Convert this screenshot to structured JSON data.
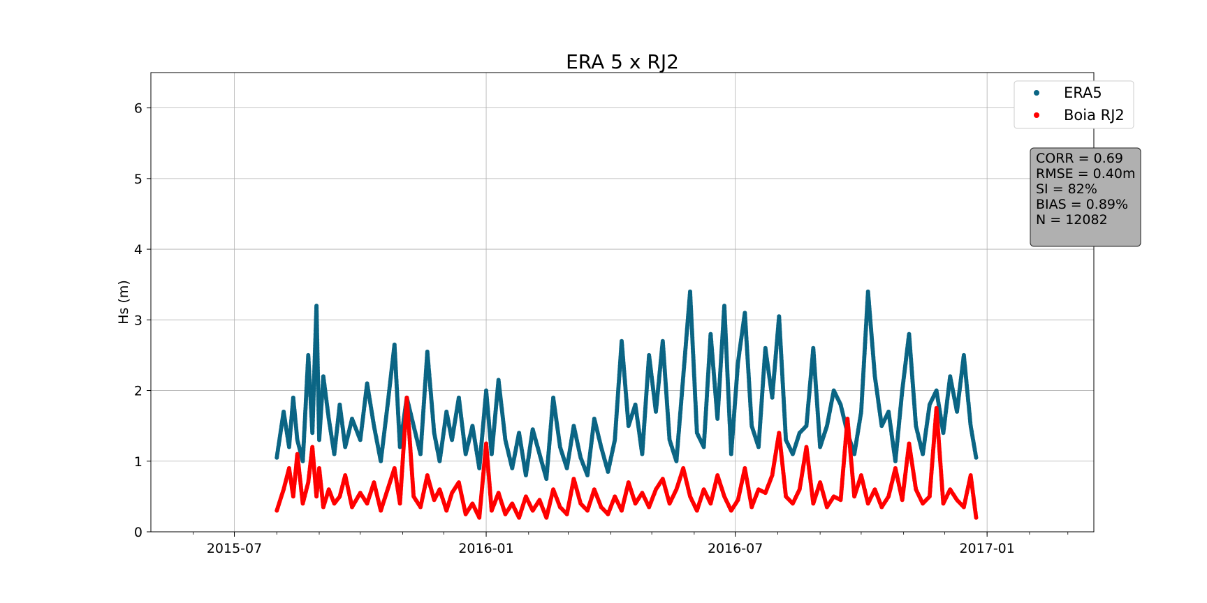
{
  "chart_data": {
    "type": "scatter",
    "title": "ERA 5 x RJ2",
    "xlabel": "",
    "ylabel": "Hs (m)",
    "x_axis": {
      "kind": "date",
      "min": "2015-05-01",
      "max": "2017-03-20",
      "ticks": [
        "2015-07-01",
        "2016-01-01",
        "2016-07-01",
        "2017-01-01"
      ],
      "tick_labels": [
        "2015-07",
        "2016-01",
        "2016-07",
        "2017-01"
      ]
    },
    "y_axis": {
      "min": 0,
      "max": 6.5,
      "ticks": [
        0,
        1,
        2,
        3,
        4,
        5,
        6
      ],
      "tick_labels": [
        "0",
        "1",
        "2",
        "3",
        "4",
        "5",
        "6"
      ]
    },
    "grid": true,
    "legend_position": "top-right",
    "series": [
      {
        "name": "ERA5",
        "color": "#0b6584",
        "x": [
          "2015-08-01",
          "2015-08-06",
          "2015-08-10",
          "2015-08-13",
          "2015-08-16",
          "2015-08-20",
          "2015-08-24",
          "2015-08-27",
          "2015-08-30",
          "2015-09-01",
          "2015-09-04",
          "2015-09-08",
          "2015-09-12",
          "2015-09-16",
          "2015-09-20",
          "2015-09-25",
          "2015-10-01",
          "2015-10-06",
          "2015-10-11",
          "2015-10-16",
          "2015-10-21",
          "2015-10-26",
          "2015-10-30",
          "2015-11-04",
          "2015-11-09",
          "2015-11-14",
          "2015-11-19",
          "2015-11-24",
          "2015-11-28",
          "2015-12-03",
          "2015-12-07",
          "2015-12-12",
          "2015-12-17",
          "2015-12-22",
          "2015-12-27",
          "2016-01-01",
          "2016-01-05",
          "2016-01-10",
          "2016-01-15",
          "2016-01-20",
          "2016-01-25",
          "2016-01-30",
          "2016-02-04",
          "2016-02-09",
          "2016-02-14",
          "2016-02-19",
          "2016-02-24",
          "2016-02-29",
          "2016-03-05",
          "2016-03-10",
          "2016-03-15",
          "2016-03-20",
          "2016-03-25",
          "2016-03-30",
          "2016-04-04",
          "2016-04-09",
          "2016-04-14",
          "2016-04-19",
          "2016-04-24",
          "2016-04-29",
          "2016-05-04",
          "2016-05-09",
          "2016-05-14",
          "2016-05-19",
          "2016-05-24",
          "2016-05-29",
          "2016-06-03",
          "2016-06-08",
          "2016-06-13",
          "2016-06-18",
          "2016-06-23",
          "2016-06-28",
          "2016-07-03",
          "2016-07-08",
          "2016-07-13",
          "2016-07-18",
          "2016-07-23",
          "2016-07-28",
          "2016-08-02",
          "2016-08-07",
          "2016-08-12",
          "2016-08-17",
          "2016-08-22",
          "2016-08-27",
          "2016-09-01",
          "2016-09-06",
          "2016-09-11",
          "2016-09-16",
          "2016-09-21",
          "2016-09-26",
          "2016-10-01",
          "2016-10-06",
          "2016-10-11",
          "2016-10-16",
          "2016-10-21",
          "2016-10-26",
          "2016-10-31",
          "2016-11-05",
          "2016-11-10",
          "2016-11-15",
          "2016-11-20",
          "2016-11-25",
          "2016-11-30",
          "2016-12-05",
          "2016-12-10",
          "2016-12-15",
          "2016-12-20",
          "2016-12-24"
        ],
        "y": [
          1.05,
          1.7,
          1.2,
          1.9,
          1.3,
          1.0,
          2.5,
          1.4,
          3.2,
          1.3,
          2.2,
          1.6,
          1.1,
          1.8,
          1.2,
          1.6,
          1.3,
          2.1,
          1.5,
          1.0,
          1.8,
          2.65,
          1.2,
          1.9,
          1.5,
          1.1,
          2.55,
          1.4,
          1.0,
          1.7,
          1.3,
          1.9,
          1.1,
          1.5,
          0.9,
          2.0,
          1.1,
          2.15,
          1.3,
          0.9,
          1.4,
          0.8,
          1.45,
          1.1,
          0.75,
          1.9,
          1.2,
          0.9,
          1.5,
          1.05,
          0.8,
          1.6,
          1.2,
          0.85,
          1.3,
          2.7,
          1.5,
          1.8,
          1.1,
          2.5,
          1.7,
          2.7,
          1.3,
          1.0,
          2.2,
          3.4,
          1.4,
          1.2,
          2.8,
          1.6,
          3.2,
          1.1,
          2.4,
          3.1,
          1.5,
          1.2,
          2.6,
          1.9,
          3.05,
          1.3,
          1.1,
          1.4,
          1.5,
          2.6,
          1.2,
          1.5,
          2.0,
          1.8,
          1.4,
          1.1,
          1.7,
          3.4,
          2.2,
          1.5,
          1.7,
          1.0,
          2.0,
          2.8,
          1.5,
          1.1,
          1.8,
          2.0,
          1.4,
          2.2,
          1.7,
          2.5,
          1.5,
          1.05
        ]
      },
      {
        "name": "Boia RJ2",
        "color": "#ff0000",
        "x": [
          "2015-08-01",
          "2015-08-06",
          "2015-08-10",
          "2015-08-13",
          "2015-08-16",
          "2015-08-20",
          "2015-08-24",
          "2015-08-27",
          "2015-08-30",
          "2015-09-01",
          "2015-09-04",
          "2015-09-08",
          "2015-09-12",
          "2015-09-16",
          "2015-09-20",
          "2015-09-25",
          "2015-10-01",
          "2015-10-06",
          "2015-10-11",
          "2015-10-16",
          "2015-10-21",
          "2015-10-26",
          "2015-10-30",
          "2015-11-04",
          "2015-11-09",
          "2015-11-14",
          "2015-11-19",
          "2015-11-24",
          "2015-11-28",
          "2015-12-03",
          "2015-12-07",
          "2015-12-12",
          "2015-12-17",
          "2015-12-22",
          "2015-12-27",
          "2016-01-01",
          "2016-01-05",
          "2016-01-10",
          "2016-01-15",
          "2016-01-20",
          "2016-01-25",
          "2016-01-30",
          "2016-02-04",
          "2016-02-09",
          "2016-02-14",
          "2016-02-19",
          "2016-02-24",
          "2016-02-29",
          "2016-03-05",
          "2016-03-10",
          "2016-03-15",
          "2016-03-20",
          "2016-03-25",
          "2016-03-30",
          "2016-04-04",
          "2016-04-09",
          "2016-04-14",
          "2016-04-19",
          "2016-04-24",
          "2016-04-29",
          "2016-05-04",
          "2016-05-09",
          "2016-05-14",
          "2016-05-19",
          "2016-05-24",
          "2016-05-29",
          "2016-06-03",
          "2016-06-08",
          "2016-06-13",
          "2016-06-18",
          "2016-06-23",
          "2016-06-28",
          "2016-07-03",
          "2016-07-08",
          "2016-07-13",
          "2016-07-18",
          "2016-07-23",
          "2016-07-28",
          "2016-08-02",
          "2016-08-07",
          "2016-08-12",
          "2016-08-17",
          "2016-08-22",
          "2016-08-27",
          "2016-09-01",
          "2016-09-06",
          "2016-09-11",
          "2016-09-16",
          "2016-09-21",
          "2016-09-26",
          "2016-10-01",
          "2016-10-06",
          "2016-10-11",
          "2016-10-16",
          "2016-10-21",
          "2016-10-26",
          "2016-10-31",
          "2016-11-05",
          "2016-11-10",
          "2016-11-15",
          "2016-11-20",
          "2016-11-25",
          "2016-11-30",
          "2016-12-05",
          "2016-12-10",
          "2016-12-15",
          "2016-12-20",
          "2016-12-24"
        ],
        "y": [
          0.3,
          0.6,
          0.9,
          0.5,
          1.1,
          0.4,
          0.7,
          1.2,
          0.5,
          0.9,
          0.35,
          0.6,
          0.4,
          0.5,
          0.8,
          0.35,
          0.55,
          0.4,
          0.7,
          0.3,
          0.6,
          0.9,
          0.4,
          1.9,
          0.5,
          0.35,
          0.8,
          0.45,
          0.6,
          0.3,
          0.55,
          0.7,
          0.25,
          0.4,
          0.2,
          1.25,
          0.3,
          0.55,
          0.25,
          0.4,
          0.2,
          0.5,
          0.3,
          0.45,
          0.2,
          0.6,
          0.35,
          0.25,
          0.75,
          0.4,
          0.3,
          0.6,
          0.35,
          0.25,
          0.5,
          0.3,
          0.7,
          0.4,
          0.55,
          0.35,
          0.6,
          0.75,
          0.4,
          0.6,
          0.9,
          0.5,
          0.3,
          0.6,
          0.4,
          0.8,
          0.5,
          0.3,
          0.45,
          0.9,
          0.35,
          0.6,
          0.55,
          0.8,
          1.4,
          0.5,
          0.4,
          0.6,
          1.2,
          0.4,
          0.7,
          0.35,
          0.5,
          0.45,
          1.6,
          0.5,
          0.8,
          0.4,
          0.6,
          0.35,
          0.5,
          0.9,
          0.45,
          1.25,
          0.6,
          0.4,
          0.5,
          1.75,
          0.4,
          0.6,
          0.45,
          0.35,
          0.8,
          0.2
        ]
      }
    ],
    "legend": [
      "ERA5",
      "Boia RJ2"
    ],
    "annotation": [
      "CORR = 0.69",
      "RMSE = 0.40m",
      "SI = 82%",
      "BIAS = 0.89%",
      "N = 12082"
    ]
  }
}
